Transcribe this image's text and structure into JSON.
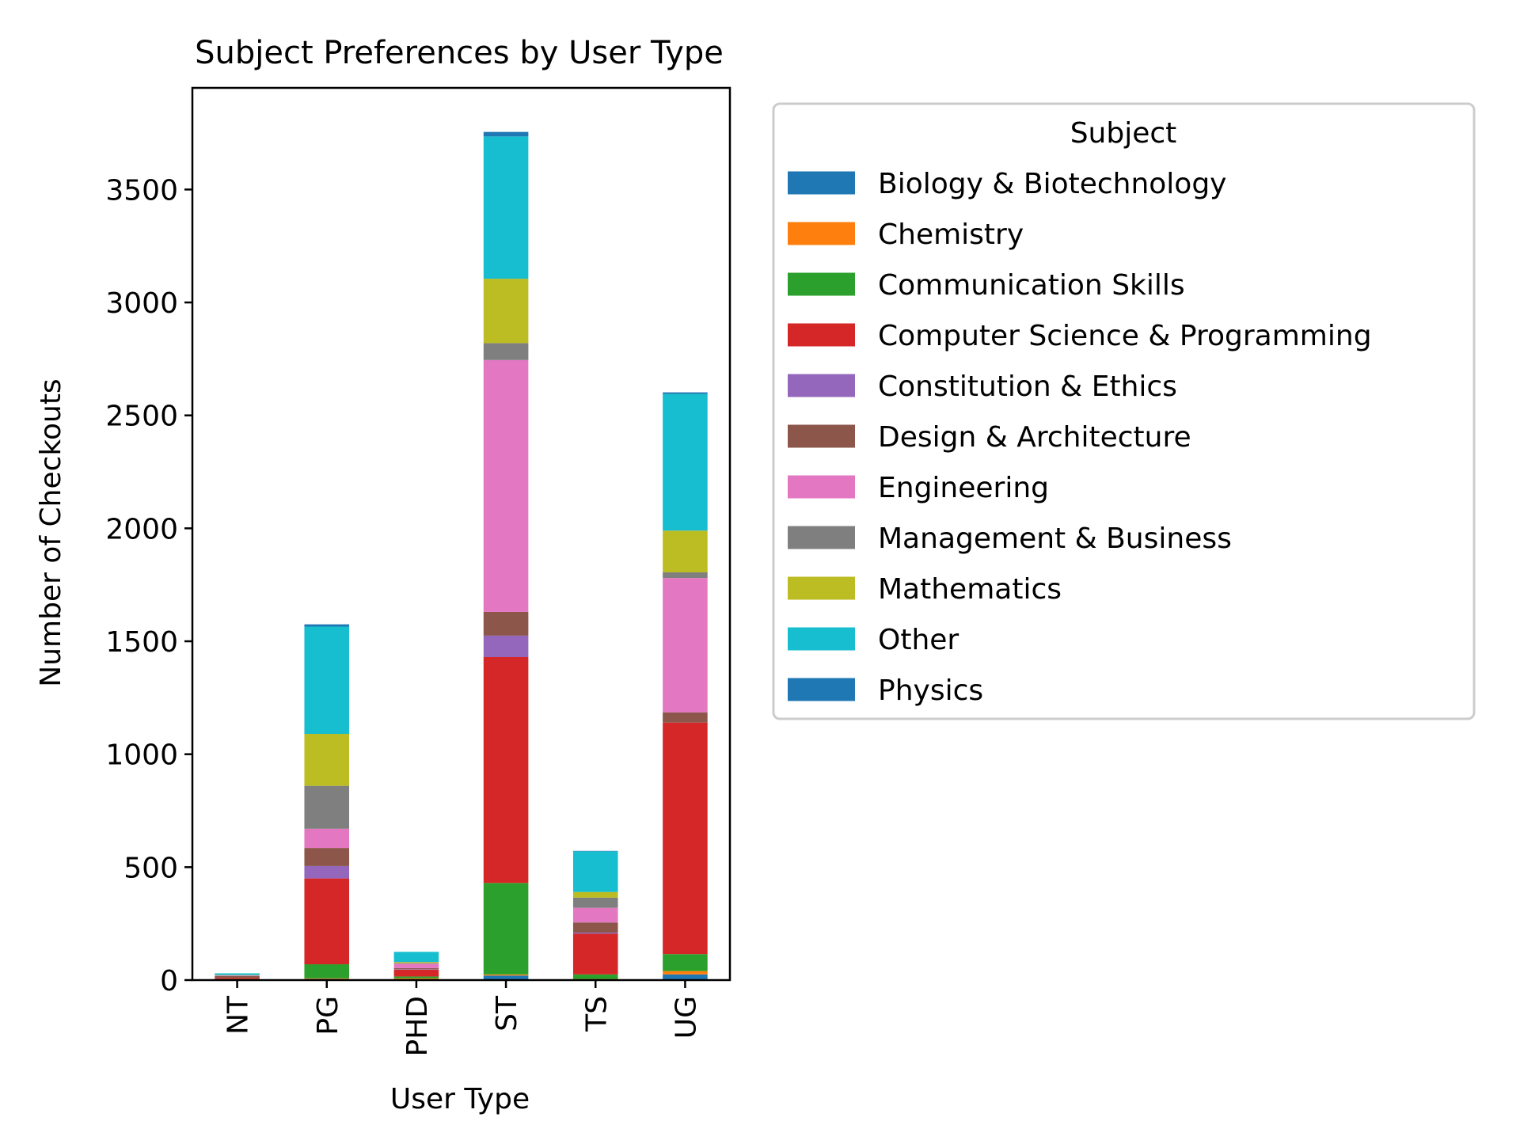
{
  "chart_data": {
    "type": "bar",
    "stacked": true,
    "title": "Subject Preferences by User Type",
    "xlabel": "User Type",
    "ylabel": "Number of Checkouts",
    "ylim": [
      0,
      3950
    ],
    "yticks": [
      0,
      500,
      1000,
      1500,
      2000,
      2500,
      3000,
      3500
    ],
    "grid": false,
    "legend": {
      "title": "Subject",
      "placement": "right-outside"
    },
    "categories": [
      "NT",
      "PG",
      "PHD",
      "ST",
      "TS",
      "UG"
    ],
    "series": [
      {
        "name": "Biology & Biotechnology",
        "color": "#1f77b4",
        "values": [
          2,
          5,
          3,
          20,
          3,
          25
        ]
      },
      {
        "name": "Chemistry",
        "color": "#ff7f0e",
        "values": [
          0,
          3,
          5,
          5,
          2,
          15
        ]
      },
      {
        "name": "Communication Skills",
        "color": "#2ca02c",
        "values": [
          3,
          62,
          8,
          405,
          20,
          75
        ]
      },
      {
        "name": "Computer Science & Programming",
        "color": "#d62728",
        "values": [
          5,
          380,
          30,
          1000,
          180,
          1025
        ]
      },
      {
        "name": "Constitution & Ethics",
        "color": "#9467bd",
        "values": [
          0,
          55,
          2,
          95,
          5,
          0
        ]
      },
      {
        "name": "Design & Architecture",
        "color": "#8c564b",
        "values": [
          8,
          80,
          5,
          105,
          45,
          45
        ]
      },
      {
        "name": "Engineering",
        "color": "#e377c2",
        "values": [
          2,
          85,
          20,
          1115,
          65,
          595
        ]
      },
      {
        "name": "Management & Business",
        "color": "#7f7f7f",
        "values": [
          2,
          190,
          2,
          75,
          45,
          25
        ]
      },
      {
        "name": "Mathematics",
        "color": "#bcbd22",
        "values": [
          1,
          230,
          5,
          285,
          25,
          185
        ]
      },
      {
        "name": "Other",
        "color": "#17becf",
        "values": [
          7,
          475,
          45,
          630,
          180,
          605
        ]
      },
      {
        "name": "Physics",
        "color": "#1f77b4",
        "values": [
          0,
          10,
          0,
          20,
          2,
          7
        ]
      }
    ]
  }
}
